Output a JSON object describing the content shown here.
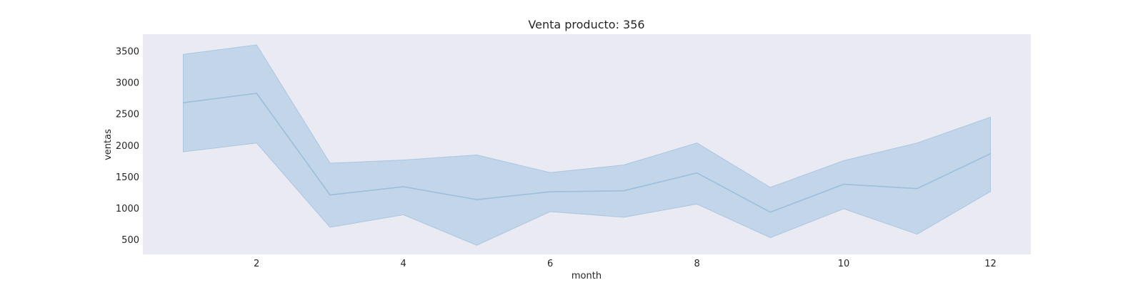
{
  "chart_data": {
    "type": "area",
    "title": "Venta producto: 356",
    "xlabel": "month",
    "ylabel": "ventas",
    "x": [
      1,
      2,
      3,
      4,
      5,
      6,
      7,
      8,
      9,
      10,
      11,
      12
    ],
    "xlim": [
      0.45,
      12.55
    ],
    "ylim": [
      270,
      3770
    ],
    "xticks": [
      2,
      4,
      6,
      8,
      10,
      12
    ],
    "yticks": [
      500,
      1000,
      1500,
      2000,
      2500,
      3000,
      3500
    ],
    "grid": false,
    "series": [
      {
        "mean": [
          2680,
          2830,
          1215,
          1345,
          1140,
          1265,
          1280,
          1565,
          940,
          1385,
          1315,
          1870
        ],
        "upper": [
          3450,
          3600,
          1720,
          1770,
          1850,
          1570,
          1690,
          2040,
          1335,
          1760,
          2040,
          2450
        ],
        "lower": [
          1900,
          2040,
          700,
          900,
          415,
          950,
          860,
          1070,
          535,
          995,
          590,
          1270
        ],
        "line_color": "#9bbfdc",
        "band_color": "#a8c7e3"
      }
    ],
    "colors": {
      "plot_background": "#eaeaf2",
      "text": "#262626"
    }
  }
}
